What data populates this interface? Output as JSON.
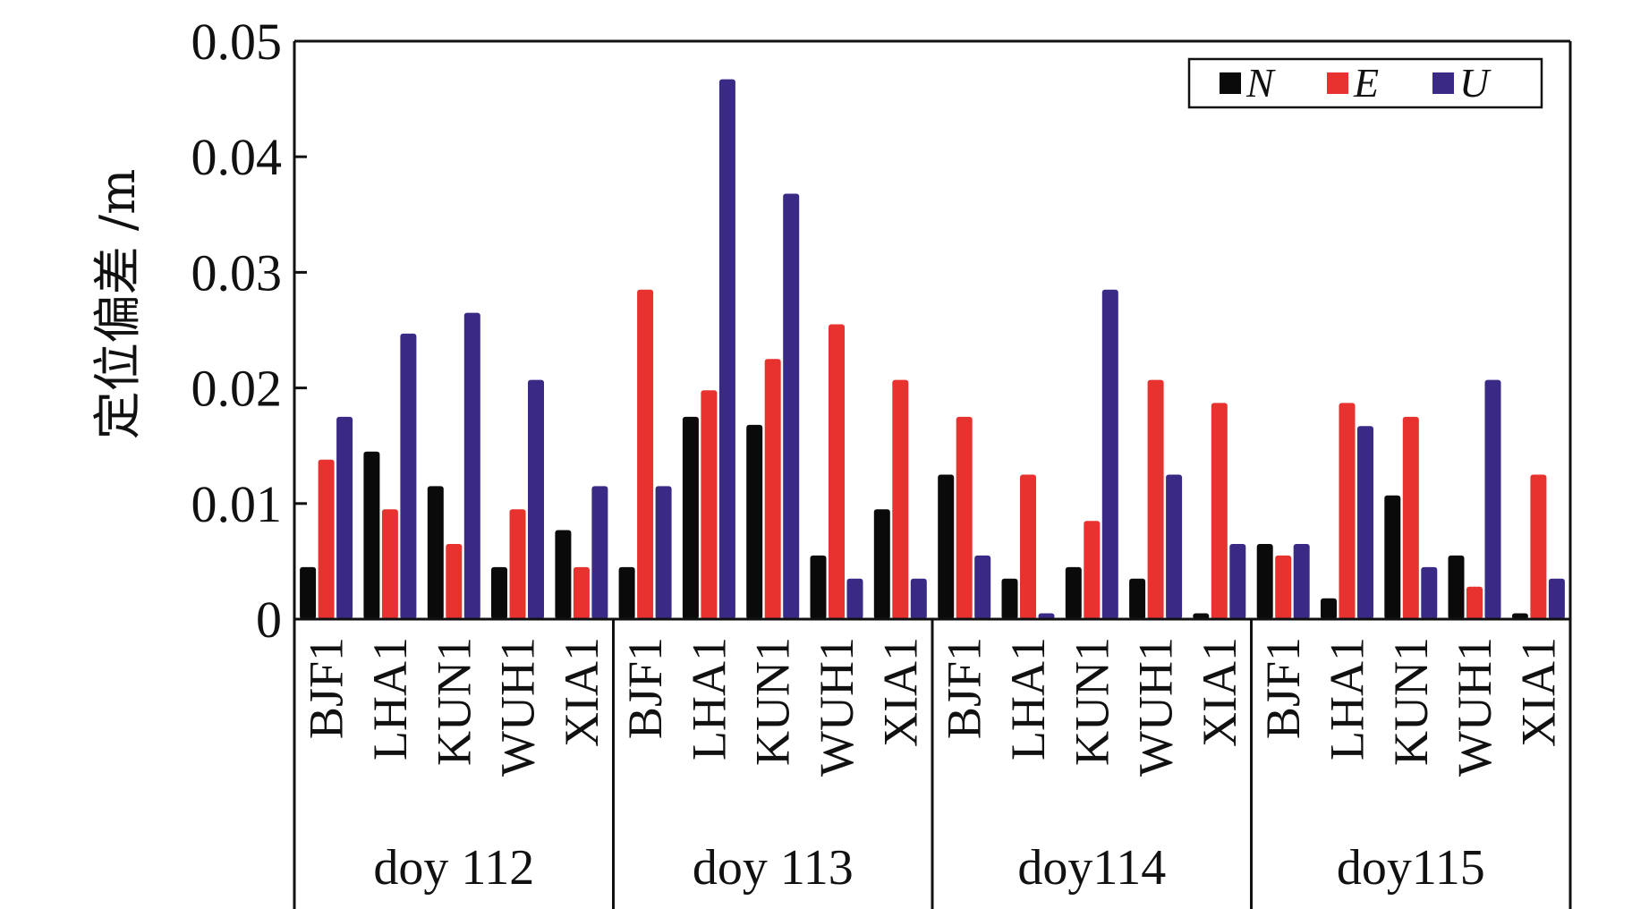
{
  "chart_data": {
    "type": "bar",
    "title": "",
    "ylabel": "定位偏差 /m",
    "xlabel": "",
    "ylim": [
      0,
      0.05
    ],
    "yticks": [
      0,
      0.01,
      0.02,
      0.03,
      0.04,
      0.05
    ],
    "ytick_labels": [
      "0",
      "0.01",
      "0.02",
      "0.03",
      "0.04",
      "0.05"
    ],
    "legend_position": "top-right",
    "groups": [
      {
        "label": "doy 112",
        "categories": [
          "BJF1",
          "LHA1",
          "KUN1",
          "WUH1",
          "XIA1"
        ]
      },
      {
        "label": "doy 113",
        "categories": [
          "BJF1",
          "LHA1",
          "KUN1",
          "WUH1",
          "XIA1"
        ]
      },
      {
        "label": "doy114",
        "categories": [
          "BJF1",
          "LHA1",
          "KUN1",
          "WUH1",
          "XIA1"
        ]
      },
      {
        "label": "doy115",
        "categories": [
          "BJF1",
          "LHA1",
          "KUN1",
          "WUH1",
          "XIA1"
        ]
      }
    ],
    "series": [
      {
        "name": "N",
        "color": "#0a0a0a",
        "values": [
          0.0045,
          0.0145,
          0.0115,
          0.0045,
          0.0077,
          0.0045,
          0.0175,
          0.0168,
          0.0055,
          0.0095,
          0.0125,
          0.0035,
          0.0045,
          0.0035,
          0.0005,
          0.0065,
          0.0018,
          0.0107,
          0.0055,
          0.0005
        ]
      },
      {
        "name": "E",
        "color": "#e8322f",
        "values": [
          0.0138,
          0.0095,
          0.0065,
          0.0095,
          0.0045,
          0.0285,
          0.0198,
          0.0225,
          0.0255,
          0.0207,
          0.0175,
          0.0125,
          0.0085,
          0.0207,
          0.0187,
          0.0055,
          0.0187,
          0.0175,
          0.0028,
          0.0125
        ]
      },
      {
        "name": "U",
        "color": "#3a2a86",
        "values": [
          0.0175,
          0.0247,
          0.0265,
          0.0207,
          0.0115,
          0.0115,
          0.0467,
          0.0368,
          0.0035,
          0.0035,
          0.0055,
          0.0005,
          0.0285,
          0.0125,
          0.0065,
          0.0065,
          0.0167,
          0.0045,
          0.0207,
          0.0035
        ]
      }
    ]
  }
}
